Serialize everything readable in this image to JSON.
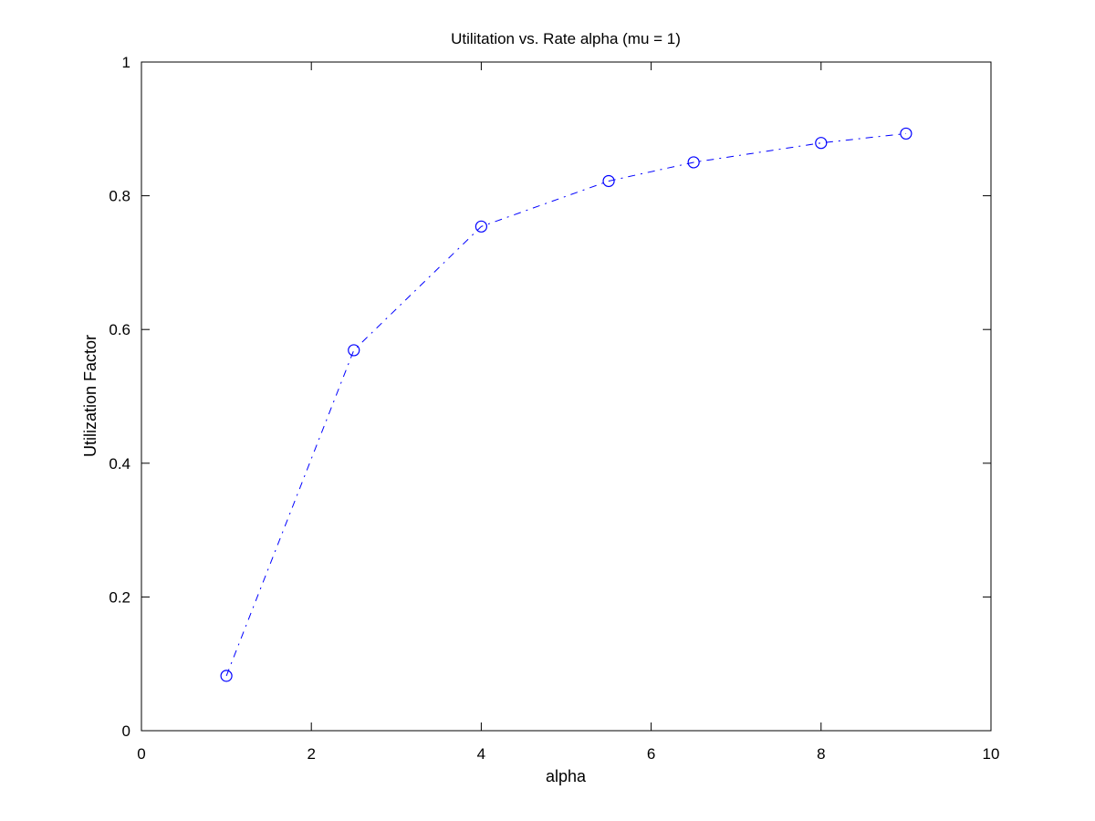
{
  "chart_data": {
    "type": "line",
    "title": "Utilitation vs. Rate alpha (mu = 1)",
    "xlabel": "alpha",
    "ylabel": "Utilization Factor",
    "xlim": [
      0,
      10
    ],
    "ylim": [
      0,
      1
    ],
    "xticks": [
      0,
      2,
      4,
      6,
      8,
      10
    ],
    "yticks": [
      0,
      0.2,
      0.4,
      0.6,
      0.8,
      1
    ],
    "xtick_labels": [
      "0",
      "2",
      "4",
      "6",
      "8",
      "10"
    ],
    "ytick_labels": [
      "0",
      "0.2",
      "0.4",
      "0.6",
      "0.8",
      "1"
    ],
    "grid": false,
    "series": [
      {
        "x": [
          1,
          2.5,
          4,
          5.5,
          6.5,
          8,
          9
        ],
        "y": [
          0.082,
          0.569,
          0.754,
          0.822,
          0.85,
          0.879,
          0.893
        ],
        "color": "#0000ff",
        "line_style": "dash-dot",
        "marker": "circle"
      }
    ]
  }
}
